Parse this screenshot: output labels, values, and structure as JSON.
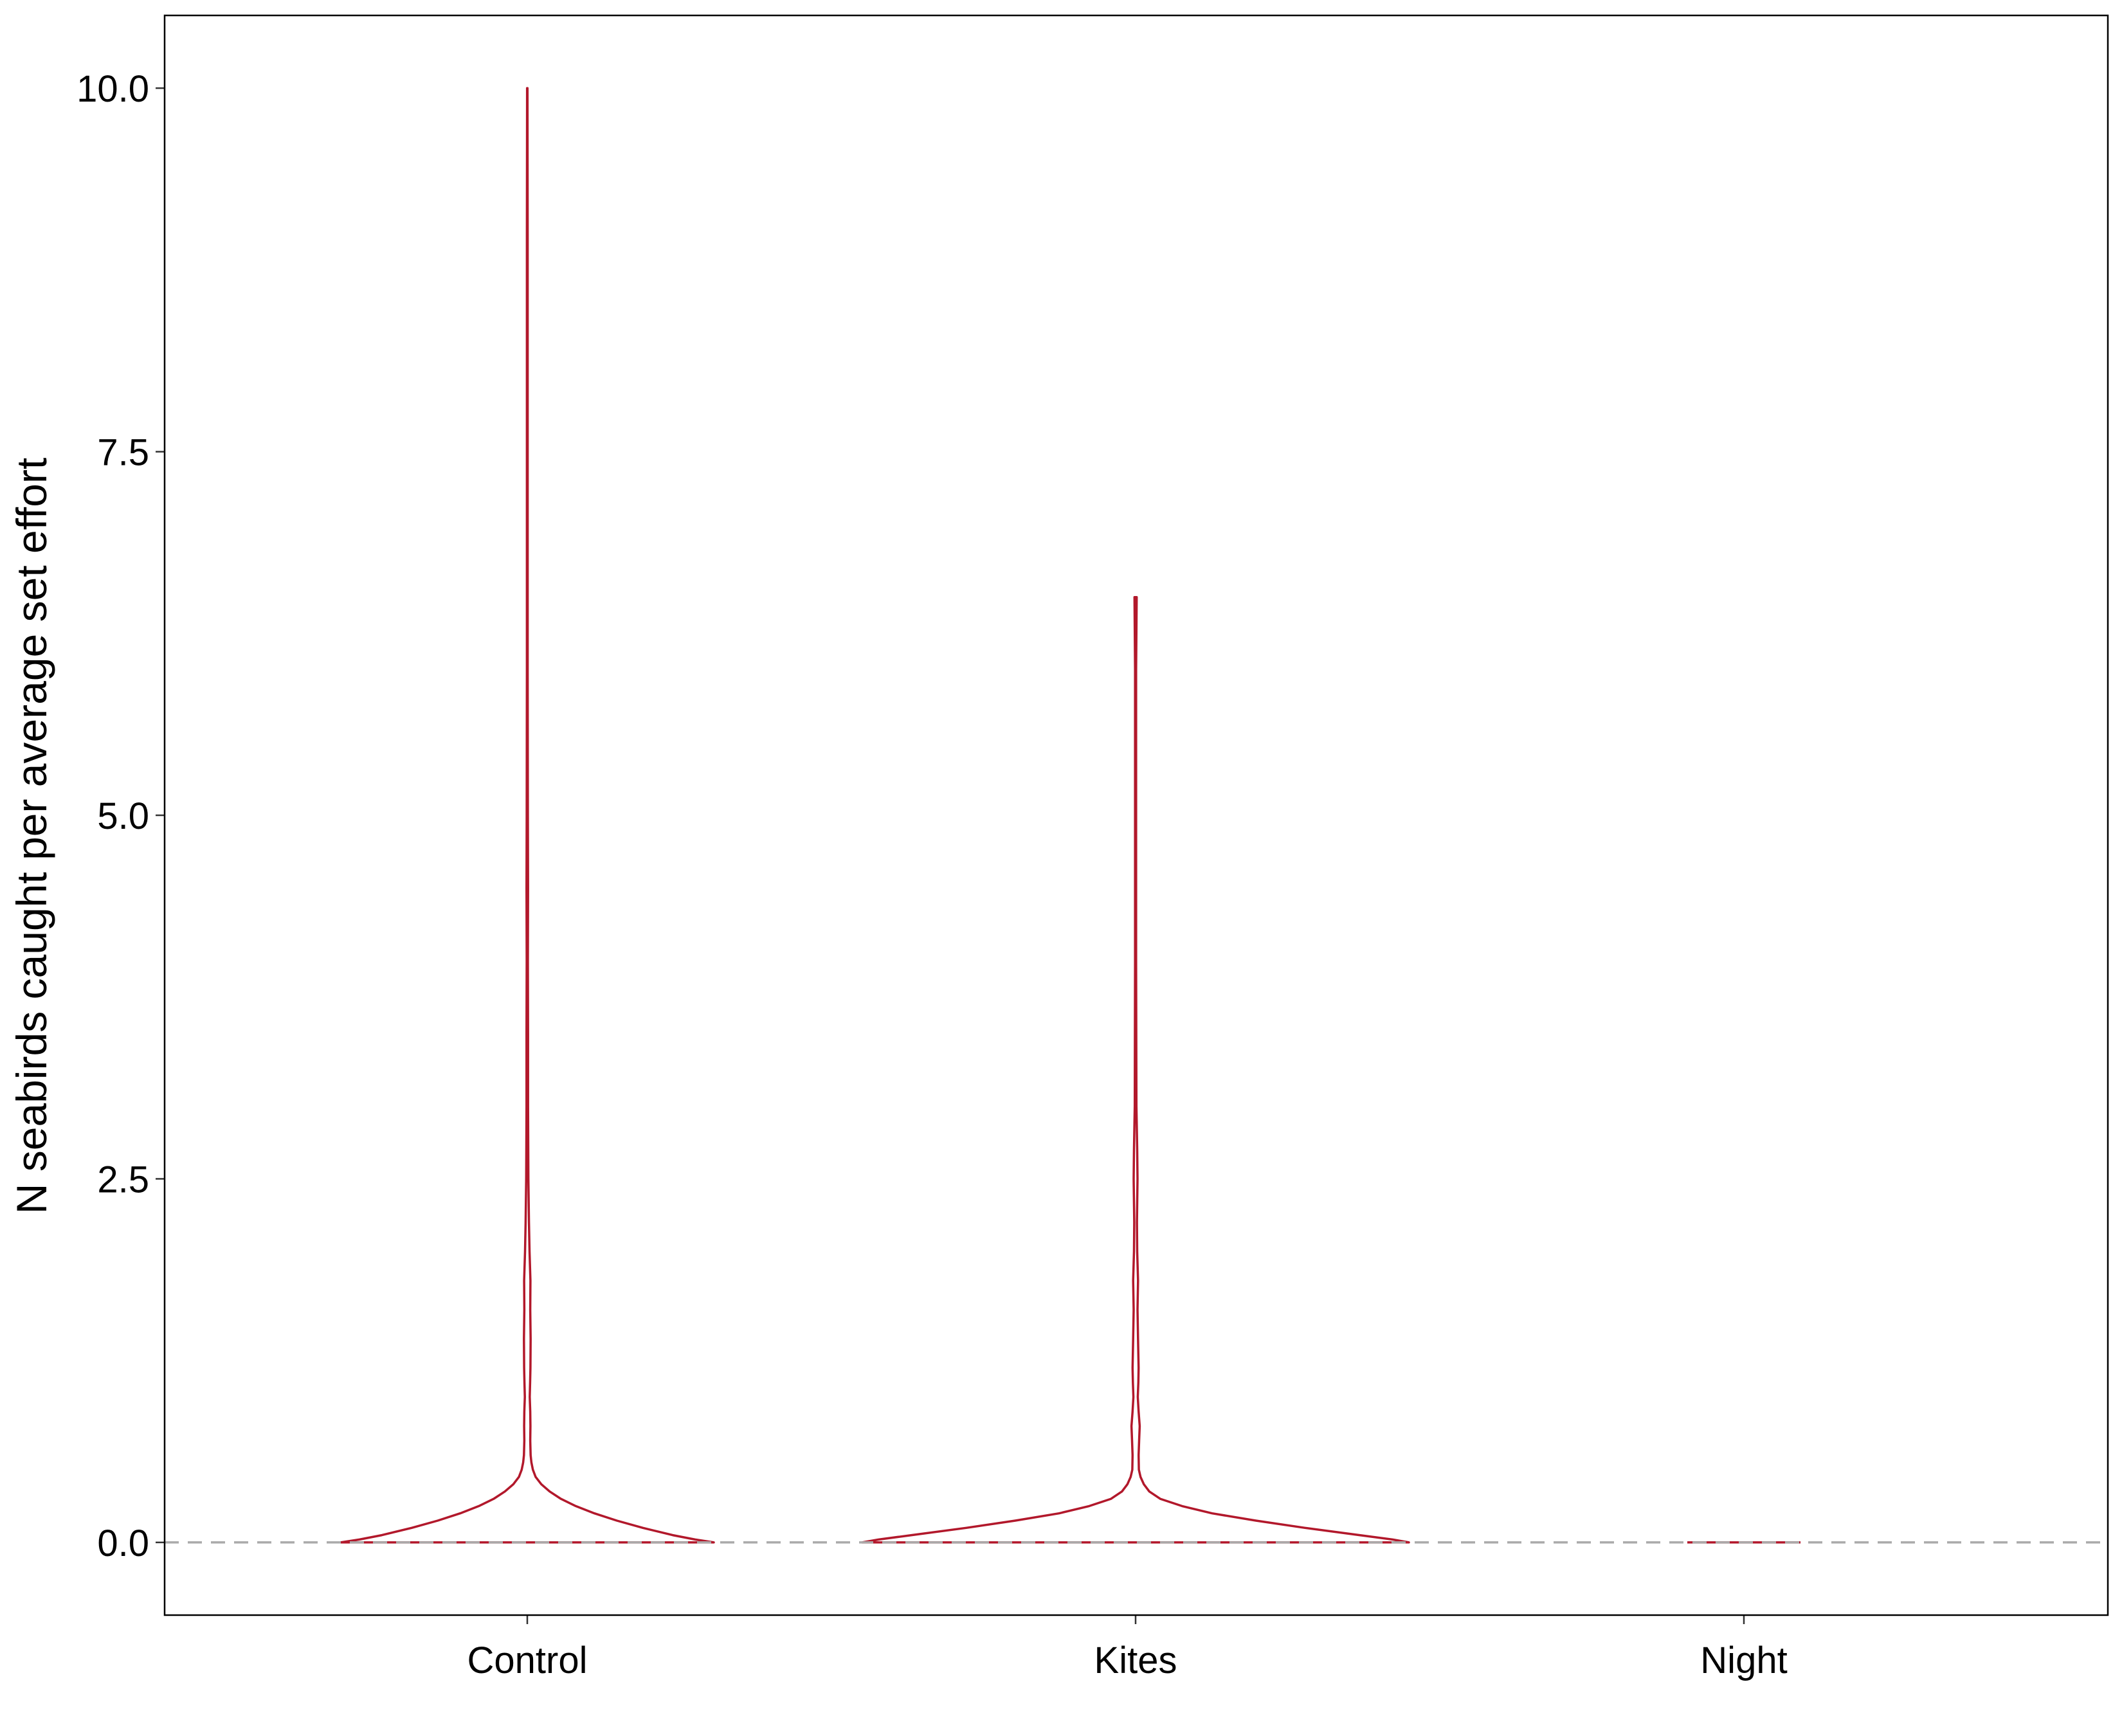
{
  "chart_data": {
    "type": "violin",
    "ylabel": "N seabirds caught per average set effort",
    "xlabel": "",
    "ylim": [
      -0.5,
      10.5
    ],
    "yticks": [
      0.0,
      2.5,
      5.0,
      7.5,
      10.0
    ],
    "ytick_labels": [
      "0.0",
      "2.5",
      "5.0",
      "7.5",
      "10.0"
    ],
    "categories": [
      "Control",
      "Kites",
      "Night"
    ],
    "grid": false,
    "legend": "none",
    "reference_line": {
      "y": 0,
      "style": "dashed",
      "color": "#aaaaaa"
    },
    "violin_color": "#b2182b",
    "series": [
      {
        "category": "Control",
        "max": 10.0,
        "profile": [
          [
            0.0,
            1.0
          ],
          [
            0.02,
            0.9
          ],
          [
            0.05,
            0.78
          ],
          [
            0.1,
            0.62
          ],
          [
            0.15,
            0.48
          ],
          [
            0.2,
            0.36
          ],
          [
            0.25,
            0.26
          ],
          [
            0.3,
            0.18
          ],
          [
            0.35,
            0.12
          ],
          [
            0.4,
            0.075
          ],
          [
            0.45,
            0.045
          ],
          [
            0.5,
            0.03
          ],
          [
            0.55,
            0.022
          ],
          [
            0.6,
            0.018
          ],
          [
            0.7,
            0.016
          ],
          [
            0.8,
            0.017
          ],
          [
            0.9,
            0.016
          ],
          [
            1.0,
            0.013
          ],
          [
            1.1,
            0.015
          ],
          [
            1.2,
            0.017
          ],
          [
            1.4,
            0.018
          ],
          [
            1.6,
            0.016
          ],
          [
            1.8,
            0.017
          ],
          [
            2.0,
            0.012
          ],
          [
            2.2,
            0.009
          ],
          [
            2.5,
            0.006
          ],
          [
            3.0,
            0.004
          ],
          [
            3.5,
            0.004
          ],
          [
            4.0,
            0.003
          ],
          [
            4.5,
            0.004
          ],
          [
            5.0,
            0.003
          ],
          [
            6.0,
            0.002
          ],
          [
            7.0,
            0.002
          ],
          [
            8.0,
            0.002
          ],
          [
            9.0,
            0.002
          ],
          [
            10.0,
            0.001
          ]
        ]
      },
      {
        "category": "Kites",
        "max": 6.5,
        "profile": [
          [
            0.0,
            1.0
          ],
          [
            0.02,
            0.94
          ],
          [
            0.05,
            0.82
          ],
          [
            0.1,
            0.62
          ],
          [
            0.15,
            0.44
          ],
          [
            0.2,
            0.28
          ],
          [
            0.25,
            0.17
          ],
          [
            0.3,
            0.09
          ],
          [
            0.35,
            0.05
          ],
          [
            0.4,
            0.03
          ],
          [
            0.45,
            0.018
          ],
          [
            0.5,
            0.012
          ],
          [
            0.6,
            0.011
          ],
          [
            0.7,
            0.013
          ],
          [
            0.8,
            0.015
          ],
          [
            0.9,
            0.011
          ],
          [
            1.0,
            0.008
          ],
          [
            1.1,
            0.01
          ],
          [
            1.2,
            0.011
          ],
          [
            1.4,
            0.009
          ],
          [
            1.6,
            0.007
          ],
          [
            1.8,
            0.009
          ],
          [
            2.0,
            0.006
          ],
          [
            2.2,
            0.005
          ],
          [
            2.5,
            0.007
          ],
          [
            2.7,
            0.006
          ],
          [
            3.0,
            0.003
          ],
          [
            4.0,
            0.002
          ],
          [
            5.0,
            0.002
          ],
          [
            6.0,
            0.002
          ],
          [
            6.5,
            0.004
          ]
        ]
      },
      {
        "category": "Night",
        "max": 0.0,
        "profile": [
          [
            0.0,
            1.0
          ]
        ]
      }
    ]
  }
}
